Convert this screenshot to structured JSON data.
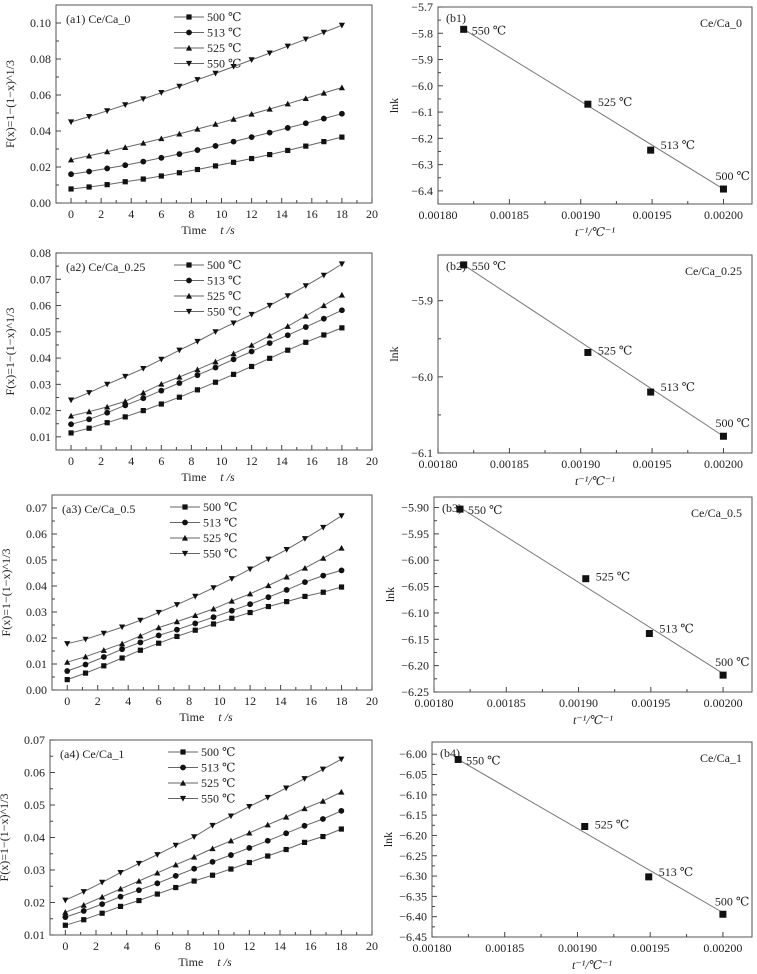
{
  "chart_data": [
    {
      "id": "a1",
      "type": "line",
      "panel_label": "(a1) Ce/Ca_0",
      "xlabel": "Time",
      "xlabel_var": "t /s",
      "ylabel": "F(x)=1−(1−x)^1/3",
      "xlim": [
        -1,
        20
      ],
      "ylim": [
        0.0,
        0.11
      ],
      "xticks": [
        0,
        2,
        4,
        6,
        8,
        10,
        12,
        14,
        16,
        18,
        20
      ],
      "yticks": [
        0.0,
        0.02,
        0.04,
        0.06,
        0.08,
        0.1
      ],
      "ytick_labels": [
        "0.00",
        "0.02",
        "0.04",
        "0.06",
        "0.08",
        "0.10"
      ],
      "legend_position": "top-center",
      "x": [
        0,
        1.2,
        2.4,
        3.6,
        4.8,
        6,
        7.2,
        8.4,
        9.6,
        10.8,
        12,
        13.2,
        14.4,
        15.6,
        16.8,
        18
      ],
      "series": [
        {
          "name": "500 ℃",
          "marker": "square",
          "values": [
            0.0078,
            0.0089,
            0.0102,
            0.0118,
            0.0133,
            0.015,
            0.0168,
            0.0186,
            0.0206,
            0.0226,
            0.0247,
            0.0269,
            0.0292,
            0.0316,
            0.0341,
            0.0366
          ]
        },
        {
          "name": "513 ℃",
          "marker": "circle",
          "values": [
            0.016,
            0.0175,
            0.0192,
            0.021,
            0.023,
            0.0251,
            0.0272,
            0.0294,
            0.0317,
            0.0341,
            0.0366,
            0.0391,
            0.0417,
            0.0443,
            0.0469,
            0.0496
          ]
        },
        {
          "name": "525 ℃",
          "marker": "triangle-up",
          "values": [
            0.024,
            0.0262,
            0.0285,
            0.0309,
            0.0333,
            0.0358,
            0.0384,
            0.0411,
            0.0438,
            0.0466,
            0.0494,
            0.0522,
            0.0551,
            0.0581,
            0.0611,
            0.0641
          ]
        },
        {
          "name": "550 ℃",
          "marker": "triangle-down",
          "values": [
            0.045,
            0.048,
            0.0512,
            0.0545,
            0.0578,
            0.0613,
            0.0648,
            0.0685,
            0.072,
            0.0758,
            0.0795,
            0.0833,
            0.0871,
            0.091,
            0.0948,
            0.0987
          ]
        }
      ]
    },
    {
      "id": "b1",
      "type": "scatter",
      "panel_label": "(b1)",
      "sample_label": "Ce/Ca_0",
      "xlabel": "t⁻¹/℃⁻¹",
      "ylabel": "lnk",
      "xlim": [
        0.0018,
        0.00202
      ],
      "ylim": [
        -6.45,
        -5.7
      ],
      "xticks": [
        0.0018,
        0.00185,
        0.0019,
        0.00195,
        0.002
      ],
      "xtick_labels": [
        "0.00180",
        "0.00185",
        "0.00190",
        "0.00195",
        "0.00200"
      ],
      "yticks": [
        -5.7,
        -5.8,
        -5.9,
        -6.0,
        -6.1,
        -6.2,
        -6.3,
        -6.4
      ],
      "ytick_labels": [
        "−5.7",
        "−5.8",
        "−5.9",
        "−6.0",
        "−6.1",
        "−6.2",
        "−6.3",
        "−6.4"
      ],
      "points": [
        {
          "label": "550 ℃",
          "x": 0.001818,
          "y": -5.785
        },
        {
          "label": "525 ℃",
          "x": 0.001905,
          "y": -6.07
        },
        {
          "label": "513 ℃",
          "x": 0.001949,
          "y": -6.245
        },
        {
          "label": "500 ℃",
          "x": 0.002,
          "y": -6.393
        }
      ],
      "fit": {
        "x": [
          0.001818,
          0.002
        ],
        "y": [
          -5.785,
          -6.393
        ]
      }
    },
    {
      "id": "a2",
      "type": "line",
      "panel_label": "(a2)  Ce/Ca_0.25",
      "xlabel": "Time",
      "xlabel_var": "t /s",
      "ylabel": "F(x)=1−(1−x)^1/3",
      "xlim": [
        -1,
        20
      ],
      "ylim": [
        0.005,
        0.08
      ],
      "xticks": [
        0,
        2,
        4,
        6,
        8,
        10,
        12,
        14,
        16,
        18,
        20
      ],
      "yticks": [
        0.01,
        0.02,
        0.03,
        0.04,
        0.05,
        0.06,
        0.07,
        0.08
      ],
      "ytick_labels": [
        "0.01",
        "0.02",
        "0.03",
        "0.04",
        "0.05",
        "0.06",
        "0.07",
        "0.08"
      ],
      "legend_position": "top-center",
      "x": [
        0,
        1.2,
        2.4,
        3.6,
        4.8,
        6,
        7.2,
        8.4,
        9.6,
        10.8,
        12,
        13.2,
        14.4,
        15.6,
        16.8,
        18
      ],
      "series": [
        {
          "name": "500 ℃",
          "marker": "square",
          "values": [
            0.0115,
            0.0133,
            0.0154,
            0.0176,
            0.02,
            0.0225,
            0.0251,
            0.0279,
            0.0308,
            0.0338,
            0.0368,
            0.0399,
            0.043,
            0.046,
            0.0488,
            0.0515
          ]
        },
        {
          "name": "513 ℃",
          "marker": "circle",
          "values": [
            0.0148,
            0.0167,
            0.0192,
            0.022,
            0.0247,
            0.0276,
            0.0305,
            0.0335,
            0.0364,
            0.0395,
            0.0425,
            0.0457,
            0.0487,
            0.0518,
            0.055,
            0.0582
          ]
        },
        {
          "name": "525 ℃",
          "marker": "triangle-up",
          "values": [
            0.018,
            0.0196,
            0.0214,
            0.0235,
            0.0268,
            0.0301,
            0.0328,
            0.0356,
            0.0386,
            0.0417,
            0.0449,
            0.0485,
            0.0521,
            0.056,
            0.06,
            0.064
          ]
        },
        {
          "name": "550 ℃",
          "marker": "triangle-down",
          "values": [
            0.024,
            0.0268,
            0.03,
            0.033,
            0.036,
            0.0395,
            0.043,
            0.0463,
            0.05,
            0.0533,
            0.0566,
            0.06,
            0.0637,
            0.0675,
            0.0715,
            0.0758
          ]
        }
      ]
    },
    {
      "id": "b2",
      "type": "scatter",
      "panel_label": "(b2)",
      "sample_label": "Ce/Ca_0.25",
      "xlabel": "t⁻¹/℃⁻¹",
      "ylabel": "lnk",
      "xlim": [
        0.0018,
        0.00202
      ],
      "ylim": [
        -6.1,
        -5.84
      ],
      "xticks": [
        0.0018,
        0.00185,
        0.0019,
        0.00195,
        0.002
      ],
      "xtick_labels": [
        "0.00180",
        "0.00185",
        "0.00190",
        "0.00195",
        "0.00200"
      ],
      "yticks": [
        -5.9,
        -6.0,
        -6.1
      ],
      "ytick_labels": [
        "−5.9",
        "−6.0",
        "−6.1"
      ],
      "points": [
        {
          "label": "550 ℃",
          "x": 0.001818,
          "y": -5.853
        },
        {
          "label": "525 ℃",
          "x": 0.001905,
          "y": -5.968
        },
        {
          "label": "513 ℃",
          "x": 0.001949,
          "y": -6.02
        },
        {
          "label": "500 ℃",
          "x": 0.002,
          "y": -6.078
        }
      ],
      "fit": {
        "x": [
          0.001818,
          0.002
        ],
        "y": [
          -5.853,
          -6.078
        ]
      }
    },
    {
      "id": "a3",
      "type": "line",
      "panel_label": "(a3)   Ce/Ca_0.5",
      "xlabel": "Time",
      "xlabel_var": "t /s",
      "ylabel": "F(x)=1−(1−x)^1/3",
      "xlim": [
        -1,
        20
      ],
      "ylim": [
        0.0,
        0.075
      ],
      "xticks": [
        0,
        2,
        4,
        6,
        8,
        10,
        12,
        14,
        16,
        18,
        20
      ],
      "yticks": [
        0.0,
        0.01,
        0.02,
        0.03,
        0.04,
        0.05,
        0.06,
        0.07
      ],
      "ytick_labels": [
        "0.00",
        "0.01",
        "0.02",
        "0.03",
        "0.04",
        "0.05",
        "0.06",
        "0.07"
      ],
      "legend_position": "top-center",
      "x": [
        0,
        1.2,
        2.4,
        3.6,
        4.8,
        6,
        7.2,
        8.4,
        9.6,
        10.8,
        12,
        13.2,
        14.4,
        15.6,
        16.8,
        18
      ],
      "series": [
        {
          "name": "500 ℃",
          "marker": "square",
          "values": [
            0.004,
            0.0065,
            0.0093,
            0.0123,
            0.0153,
            0.018,
            0.0206,
            0.023,
            0.0254,
            0.0276,
            0.0298,
            0.0321,
            0.034,
            0.036,
            0.0376,
            0.0396
          ]
        },
        {
          "name": "513 ℃",
          "marker": "circle",
          "values": [
            0.0073,
            0.0098,
            0.0127,
            0.0157,
            0.0183,
            0.021,
            0.0232,
            0.0256,
            0.028,
            0.0305,
            0.033,
            0.0357,
            0.0385,
            0.0415,
            0.044,
            0.046
          ]
        },
        {
          "name": "525 ℃",
          "marker": "triangle-up",
          "values": [
            0.0107,
            0.0128,
            0.0153,
            0.0178,
            0.0208,
            0.024,
            0.0263,
            0.0287,
            0.0312,
            0.0342,
            0.037,
            0.0402,
            0.0435,
            0.0469,
            0.0507,
            0.0546
          ]
        },
        {
          "name": "550 ℃",
          "marker": "triangle-down",
          "values": [
            0.0178,
            0.0195,
            0.0218,
            0.0242,
            0.0268,
            0.0298,
            0.0328,
            0.036,
            0.0393,
            0.0428,
            0.0465,
            0.0503,
            0.054,
            0.0582,
            0.0625,
            0.067
          ]
        }
      ]
    },
    {
      "id": "b3",
      "type": "scatter",
      "panel_label": "(b3)",
      "sample_label": "Ce/Ca_0.5",
      "xlabel": "t⁻¹/℃⁻¹",
      "ylabel": "lnk",
      "xlim": [
        0.0018,
        0.00202
      ],
      "ylim": [
        -6.25,
        -5.88
      ],
      "xticks": [
        0.0018,
        0.00185,
        0.0019,
        0.00195,
        0.002
      ],
      "xtick_labels": [
        "0.00180",
        "0.00185",
        "0.00190",
        "0.00195",
        "0.00200"
      ],
      "yticks": [
        -5.9,
        -5.95,
        -6.0,
        -6.05,
        -6.1,
        -6.15,
        -6.2,
        -6.25
      ],
      "ytick_labels": [
        "−5.90",
        "−5.95",
        "−6.00",
        "−6.05",
        "−6.10",
        "−6.15",
        "−6.20",
        "−6.25"
      ],
      "points": [
        {
          "label": "550 ℃",
          "x": 0.001818,
          "y": -5.903
        },
        {
          "label": "525 ℃",
          "x": 0.001905,
          "y": -6.035
        },
        {
          "label": "513 ℃",
          "x": 0.001949,
          "y": -6.139
        },
        {
          "label": "500 ℃",
          "x": 0.002,
          "y": -6.218
        }
      ],
      "fit": {
        "x": [
          0.001818,
          0.002
        ],
        "y": [
          -5.9,
          -6.215
        ]
      }
    },
    {
      "id": "a4",
      "type": "line",
      "panel_label": "(a4)   Ce/Ca_1",
      "xlabel": "Time",
      "xlabel_var": "t /s",
      "ylabel": "F(x)=1−(1−x)^1/3",
      "xlim": [
        -1,
        20
      ],
      "ylim": [
        0.01,
        0.07
      ],
      "xticks": [
        0,
        2,
        4,
        6,
        8,
        10,
        12,
        14,
        16,
        18,
        20
      ],
      "yticks": [
        0.01,
        0.02,
        0.03,
        0.04,
        0.05,
        0.06,
        0.07
      ],
      "ytick_labels": [
        "0.01",
        "0.02",
        "0.03",
        "0.04",
        "0.05",
        "0.06",
        "0.07"
      ],
      "legend_position": "top-center",
      "x": [
        0,
        1.2,
        2.4,
        3.6,
        4.8,
        6,
        7.2,
        8.4,
        9.6,
        10.8,
        12,
        13.2,
        14.4,
        15.6,
        16.8,
        18
      ],
      "series": [
        {
          "name": "500 ℃",
          "marker": "square",
          "values": [
            0.013,
            0.0147,
            0.0167,
            0.0188,
            0.0206,
            0.0226,
            0.0246,
            0.0266,
            0.0284,
            0.0303,
            0.0323,
            0.0343,
            0.0363,
            0.0385,
            0.0403,
            0.0426
          ]
        },
        {
          "name": "513 ℃",
          "marker": "circle",
          "values": [
            0.0155,
            0.0174,
            0.0195,
            0.0218,
            0.0238,
            0.0259,
            0.0282,
            0.0304,
            0.0325,
            0.0346,
            0.0368,
            0.039,
            0.0413,
            0.0436,
            0.0457,
            0.0482
          ]
        },
        {
          "name": "525 ℃",
          "marker": "triangle-up",
          "values": [
            0.017,
            0.0192,
            0.0217,
            0.0242,
            0.0266,
            0.0291,
            0.0316,
            0.034,
            0.0366,
            0.039,
            0.0414,
            0.0439,
            0.0463,
            0.0489,
            0.0512,
            0.054
          ]
        },
        {
          "name": "550 ℃",
          "marker": "triangle-down",
          "values": [
            0.0207,
            0.0233,
            0.0262,
            0.0292,
            0.032,
            0.0347,
            0.0376,
            0.0402,
            0.0437,
            0.0466,
            0.0495,
            0.0523,
            0.0552,
            0.0581,
            0.061,
            0.0641
          ]
        }
      ]
    },
    {
      "id": "b4",
      "type": "scatter",
      "panel_label": "(b4)",
      "sample_label": "Ce/Ca_1",
      "xlabel": "t⁻¹/℃⁻¹",
      "ylabel": "lnk",
      "xlim": [
        0.0018,
        0.00202
      ],
      "ylim": [
        -6.45,
        -5.97
      ],
      "xticks": [
        0.0018,
        0.00185,
        0.0019,
        0.00195,
        0.002
      ],
      "xtick_labels": [
        "0.00180",
        "0.00185",
        "0.00190",
        "0.00195",
        "0.00200"
      ],
      "yticks": [
        -6.0,
        -6.05,
        -6.1,
        -6.15,
        -6.2,
        -6.25,
        -6.3,
        -6.35,
        -6.4,
        -6.45
      ],
      "ytick_labels": [
        "−6.00",
        "−6.05",
        "−6.10",
        "−6.15",
        "−6.20",
        "−6.25",
        "−6.30",
        "−6.35",
        "−6.40",
        "−6.45"
      ],
      "points": [
        {
          "label": "550 ℃",
          "x": 0.001818,
          "y": -6.013
        },
        {
          "label": "525 ℃",
          "x": 0.001905,
          "y": -6.178
        },
        {
          "label": "513 ℃",
          "x": 0.001949,
          "y": -6.302
        },
        {
          "label": "500 ℃",
          "x": 0.002,
          "y": -6.394
        }
      ],
      "fit": {
        "x": [
          0.001818,
          0.002
        ],
        "y": [
          -6.013,
          -6.39
        ]
      }
    }
  ]
}
